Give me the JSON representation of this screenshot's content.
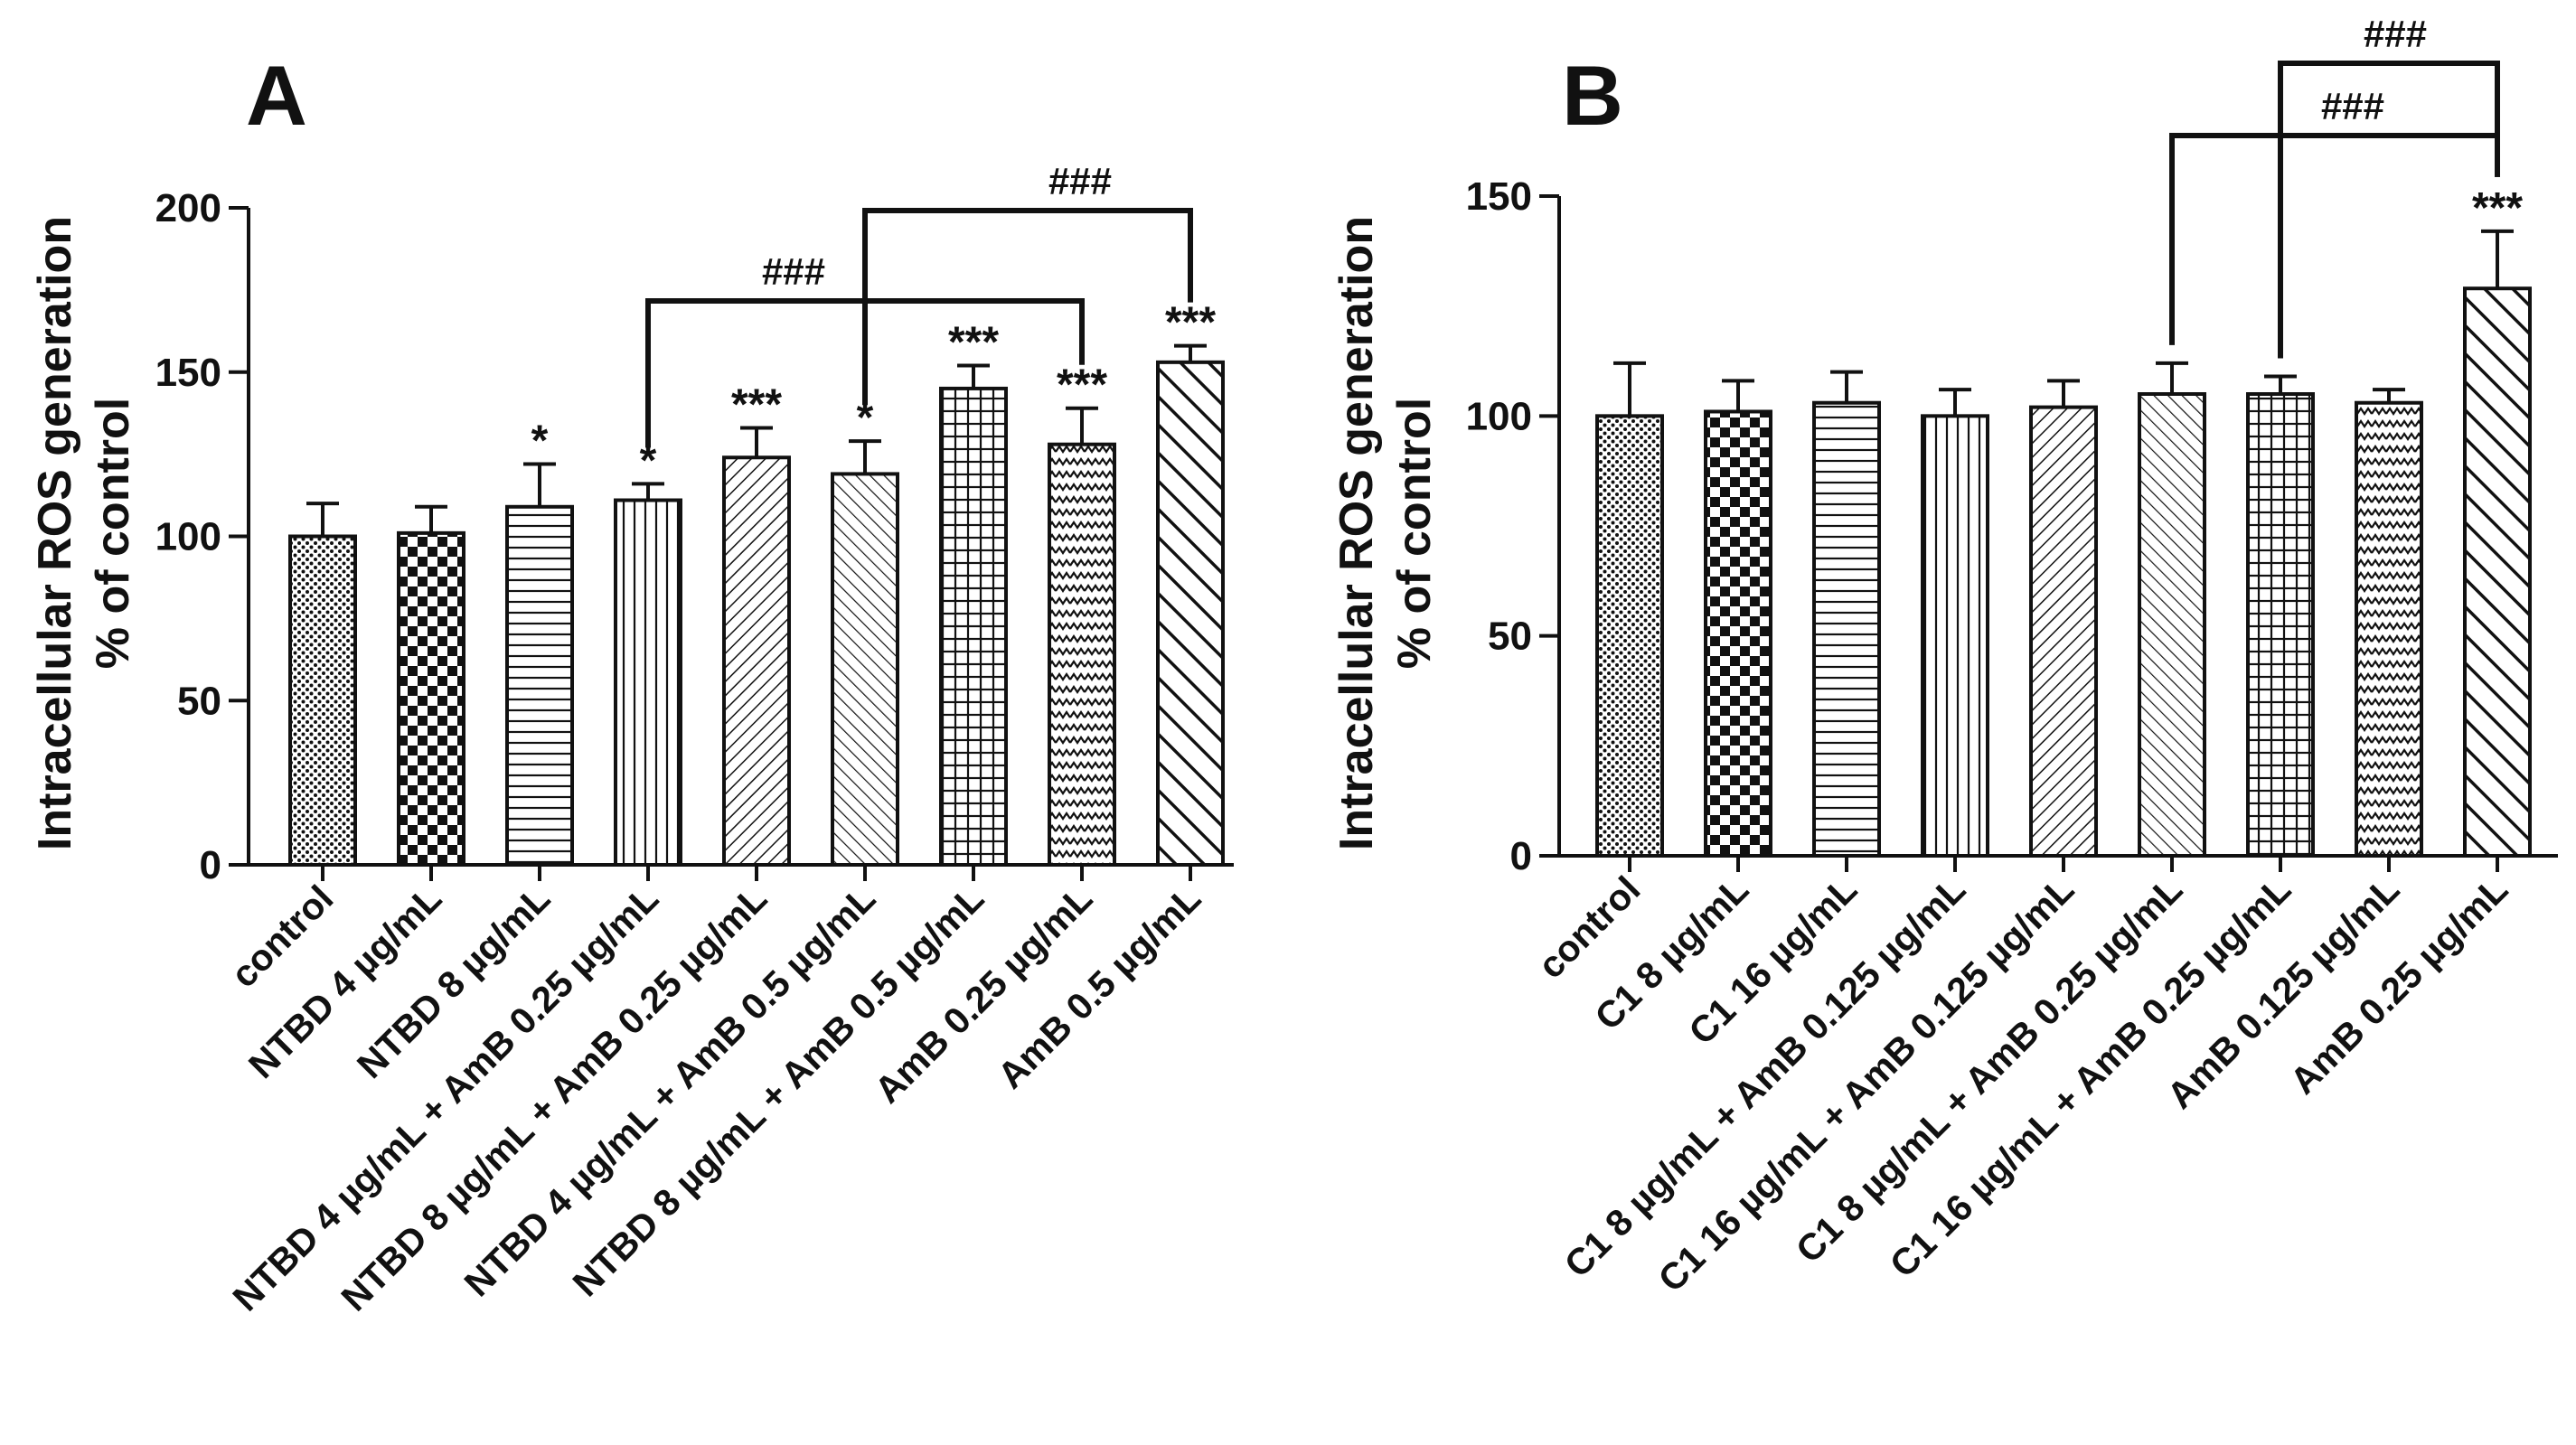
{
  "chart_data": [
    {
      "panel": "A",
      "type": "bar",
      "ylabel_line1": "Intracellular ROS generation",
      "ylabel_line2": "% of control",
      "ylim": [
        0,
        200
      ],
      "yticks": [
        0,
        50,
        100,
        150,
        200
      ],
      "categories": [
        "control",
        "NTBD 4 µg/mL",
        "NTBD 8 µg/mL",
        "NTBD 4 µg/mL + AmB 0.25 µg/mL",
        "NTBD 8 µg/mL + AmB 0.25 µg/mL",
        "NTBD 4 µg/mL + AmB 0.5 µg/mL",
        "NTBD 8 µg/mL + AmB 0.5 µg/mL",
        "AmB 0.25 µg/mL",
        "AmB 0.5 µg/mL"
      ],
      "values": [
        100,
        101,
        109,
        111,
        124,
        119,
        145,
        128,
        153
      ],
      "errors": [
        10,
        8,
        13,
        5,
        9,
        10,
        7,
        11,
        5
      ],
      "significance": [
        "",
        "",
        "*",
        "*",
        "***",
        "*",
        "***",
        "***",
        "***"
      ],
      "patterns": [
        "dots",
        "checker",
        "hlines",
        "vlines",
        "diag",
        "antidiag",
        "grid",
        "zigzag",
        "wide-antidiag"
      ],
      "brackets": [
        {
          "from": 3,
          "to": 7,
          "label": "###"
        },
        {
          "from": 5,
          "to": 8,
          "label": "###"
        }
      ]
    },
    {
      "panel": "B",
      "type": "bar",
      "ylabel_line1": "Intracellular ROS generation",
      "ylabel_line2": "% of control",
      "ylim": [
        0,
        150
      ],
      "yticks": [
        0,
        50,
        100,
        150
      ],
      "categories": [
        "control",
        "C1 8 µg/mL",
        "C1 16 µg/mL",
        "C1 8 µg/mL + AmB 0.125 µg/mL",
        "C1 16 µg/mL + AmB 0.125 µg/mL",
        "C1 8 µg/mL + AmB 0.25 µg/mL",
        "C1 16 µg/mL + AmB 0.25 µg/mL",
        "AmB 0.125 µg/mL",
        "AmB 0.25 µg/mL"
      ],
      "values": [
        100,
        101,
        103,
        100,
        102,
        105,
        105,
        103,
        129
      ],
      "errors": [
        12,
        7,
        7,
        6,
        6,
        7,
        4,
        3,
        13
      ],
      "significance": [
        "",
        "",
        "",
        "",
        "",
        "",
        "",
        "",
        "***"
      ],
      "patterns": [
        "dots",
        "checker",
        "hlines",
        "vlines",
        "diag",
        "antidiag",
        "grid",
        "zigzag",
        "wide-antidiag"
      ],
      "brackets": [
        {
          "from": 5,
          "to": 8,
          "label": "###"
        },
        {
          "from": 6,
          "to": 8,
          "label": "###"
        }
      ]
    }
  ]
}
